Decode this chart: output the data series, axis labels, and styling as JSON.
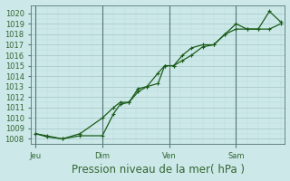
{
  "background_color": "#cce8e8",
  "grid_color_major": "#aacccc",
  "grid_color_minor": "#bbdddd",
  "line_color": "#1a5c1a",
  "marker_color": "#1a5c1a",
  "ylabel": "Pression niveau de la mer( hPa )",
  "ylim": [
    1007.5,
    1020.8
  ],
  "yticks": [
    1008,
    1009,
    1010,
    1011,
    1012,
    1013,
    1014,
    1015,
    1016,
    1017,
    1018,
    1019,
    1020
  ],
  "xtick_labels": [
    "Jeu",
    "Dim",
    "Ven",
    "Sam"
  ],
  "xtick_positions": [
    0.0,
    3.0,
    6.0,
    9.0
  ],
  "xlim": [
    -0.2,
    11.2
  ],
  "vline_color": "#557777",
  "font_color": "#336633",
  "tick_fontsize": 6.0,
  "label_fontsize": 8.5,
  "series1_x": [
    0.0,
    0.5,
    1.2,
    2.0,
    3.0,
    3.5,
    3.8,
    4.2,
    4.6,
    5.0,
    5.5,
    5.8,
    6.2,
    6.6,
    7.0,
    7.5,
    8.0,
    8.5,
    9.0,
    9.5,
    10.0,
    10.5,
    11.0
  ],
  "series1_y": [
    1008.5,
    1008.2,
    1008.0,
    1008.3,
    1008.3,
    1010.4,
    1011.3,
    1011.5,
    1012.8,
    1013.0,
    1013.3,
    1015.0,
    1015.0,
    1015.5,
    1016.0,
    1016.8,
    1017.0,
    1018.0,
    1018.5,
    1018.5,
    1018.5,
    1018.5,
    1019.0
  ],
  "series2_x": [
    0.0,
    0.5,
    1.2,
    2.0,
    3.0,
    3.5,
    3.8,
    4.2,
    4.6,
    5.0,
    5.5,
    5.8,
    6.2,
    6.6,
    7.0,
    7.5,
    8.0,
    8.5,
    9.0,
    9.5,
    10.0,
    10.5,
    11.0
  ],
  "series2_y": [
    1008.5,
    1008.3,
    1008.0,
    1008.5,
    1010.0,
    1011.0,
    1011.5,
    1011.5,
    1012.5,
    1013.0,
    1014.3,
    1015.0,
    1015.0,
    1016.0,
    1016.7,
    1017.0,
    1017.0,
    1018.0,
    1019.0,
    1018.5,
    1018.5,
    1020.2,
    1019.2
  ],
  "vline_positions": [
    0.0,
    3.0,
    6.0,
    9.0
  ]
}
